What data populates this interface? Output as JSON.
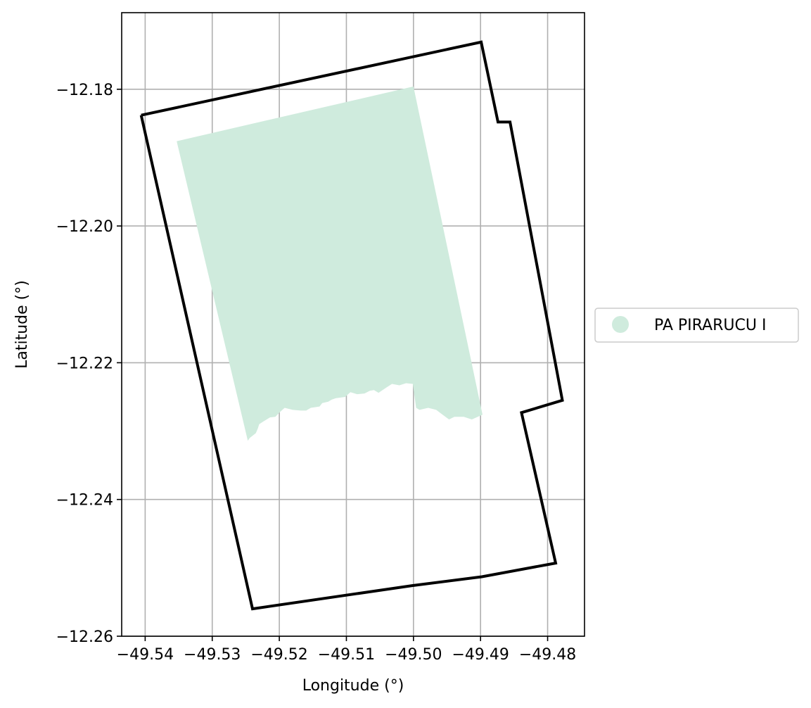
{
  "chart_data": {
    "type": "map",
    "xlabel": "Longitude (°)",
    "ylabel": "Latitude (°)",
    "xlim": [
      -49.5435,
      -49.4745
    ],
    "ylim": [
      -12.26,
      -12.1688
    ],
    "xticks": [
      -49.54,
      -49.53,
      -49.52,
      -49.51,
      -49.5,
      -49.49,
      -49.48
    ],
    "xtick_labels": [
      "−49.54",
      "−49.53",
      "−49.52",
      "−49.51",
      "−49.50",
      "−49.49",
      "−49.48"
    ],
    "yticks": [
      -12.18,
      -12.2,
      -12.22,
      -12.24,
      -12.26
    ],
    "ytick_labels": [
      "−12.18",
      "−12.20",
      "−12.22",
      "−12.24",
      "−12.26"
    ],
    "grid": true,
    "legend": {
      "placement": "center-right",
      "entries": [
        {
          "label": "PA PIRARUCU I",
          "color": "#cfebdd"
        }
      ]
    },
    "boundary": {
      "color": "#000000",
      "coords": [
        [
          -49.5406,
          -12.1838
        ],
        [
          -49.4899,
          -12.1731
        ],
        [
          -49.4874,
          -12.1848
        ],
        [
          -49.4856,
          -12.1848
        ],
        [
          -49.4778,
          -12.2255
        ],
        [
          -49.4839,
          -12.2273
        ],
        [
          -49.4788,
          -12.2493
        ],
        [
          -49.4898,
          -12.2513
        ],
        [
          -49.5002,
          -12.2526
        ],
        [
          -49.524,
          -12.256
        ],
        [
          -49.5406,
          -12.1838
        ]
      ]
    },
    "area": {
      "name": "PA PIRARUCU I",
      "color": "#cfebdd",
      "coords": [
        [
          -49.5353,
          -12.1876
        ],
        [
          -49.5,
          -12.1796
        ],
        [
          -49.4897,
          -12.2276
        ],
        [
          -49.4913,
          -12.2283
        ],
        [
          -49.4925,
          -12.2279
        ],
        [
          -49.4939,
          -12.2279
        ],
        [
          -49.4947,
          -12.2283
        ],
        [
          -49.4958,
          -12.2275
        ],
        [
          -49.4966,
          -12.2269
        ],
        [
          -49.4978,
          -12.2266
        ],
        [
          -49.4991,
          -12.2269
        ],
        [
          -49.4996,
          -12.2266
        ],
        [
          -49.5001,
          -12.2231
        ],
        [
          -49.5011,
          -12.223
        ],
        [
          -49.5021,
          -12.2233
        ],
        [
          -49.5032,
          -12.2231
        ],
        [
          -49.504,
          -12.2236
        ],
        [
          -49.5052,
          -12.2244
        ],
        [
          -49.5059,
          -12.224
        ],
        [
          -49.5065,
          -12.2241
        ],
        [
          -49.5073,
          -12.2245
        ],
        [
          -49.5084,
          -12.2246
        ],
        [
          -49.5094,
          -12.2243
        ],
        [
          -49.5102,
          -12.225
        ],
        [
          -49.5116,
          -12.2252
        ],
        [
          -49.5122,
          -12.2254
        ],
        [
          -49.5127,
          -12.2257
        ],
        [
          -49.5136,
          -12.2259
        ],
        [
          -49.514,
          -12.2264
        ],
        [
          -49.5153,
          -12.2266
        ],
        [
          -49.516,
          -12.227
        ],
        [
          -49.5168,
          -12.227
        ],
        [
          -49.518,
          -12.2269
        ],
        [
          -49.5192,
          -12.2266
        ],
        [
          -49.5199,
          -12.2272
        ],
        [
          -49.5206,
          -12.2279
        ],
        [
          -49.5214,
          -12.228
        ],
        [
          -49.5224,
          -12.2286
        ],
        [
          -49.523,
          -12.229
        ],
        [
          -49.5232,
          -12.2296
        ],
        [
          -49.5235,
          -12.2303
        ],
        [
          -49.5244,
          -12.231
        ],
        [
          -49.5247,
          -12.2314
        ],
        [
          -49.5353,
          -12.1876
        ]
      ]
    }
  }
}
